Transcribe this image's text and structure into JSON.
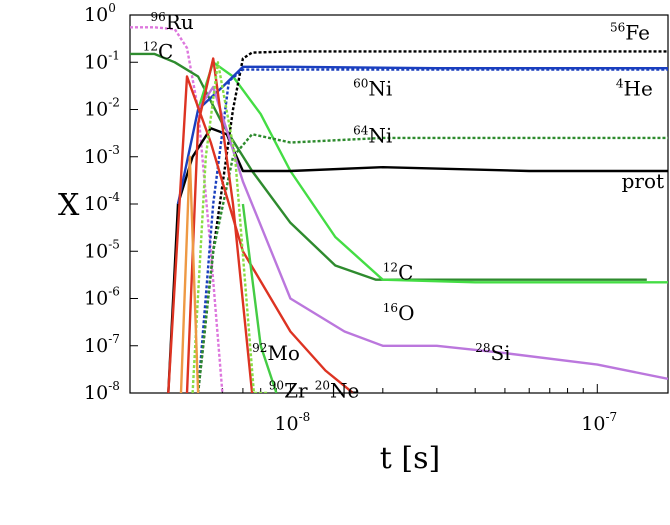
{
  "chart_data": {
    "type": "line",
    "title": "",
    "xlabel": "t [s]",
    "ylabel": "X",
    "x_scale": "log",
    "y_scale": "log",
    "xlim": [
      3e-09,
      1.7e-07
    ],
    "ylim": [
      1e-08,
      1
    ],
    "x_ticks": [
      {
        "base": "10",
        "exp": "-8"
      },
      {
        "base": "10",
        "exp": "-7"
      }
    ],
    "y_ticks": [
      {
        "base": "10",
        "exp": "0"
      },
      {
        "base": "10",
        "exp": "-1"
      },
      {
        "base": "10",
        "exp": "-2"
      },
      {
        "base": "10",
        "exp": "-3"
      },
      {
        "base": "10",
        "exp": "-4"
      },
      {
        "base": "10",
        "exp": "-5"
      },
      {
        "base": "10",
        "exp": "-6"
      },
      {
        "base": "10",
        "exp": "-7"
      },
      {
        "base": "10",
        "exp": "-8"
      }
    ],
    "grid": false,
    "legend": "none",
    "series": [
      {
        "name": "96Ru",
        "color": "#dd77dd",
        "dash": true,
        "x": [
          3e-09,
          3.6e-09,
          4.2e-09,
          4.6e-09,
          5e-09,
          5.5e-09,
          6e-09
        ],
        "y": [
          0.55,
          0.55,
          0.5,
          0.2,
          0.01,
          1e-05,
          1e-08
        ]
      },
      {
        "name": "12C",
        "color": "#2e8b2e",
        "dash": false,
        "x": [
          3e-09,
          3.6e-09,
          4.2e-09,
          5e-09,
          6e-09,
          7.5e-09,
          1e-08,
          1.4e-08,
          1.9e-08,
          3e-08,
          6e-08,
          1.1e-07,
          1.45e-07
        ],
        "y": [
          0.15,
          0.15,
          0.1,
          0.05,
          0.005,
          0.0005,
          4e-05,
          5e-06,
          2.5e-06,
          2.5e-06,
          2.5e-06,
          2.5e-06,
          2.5e-06
        ]
      },
      {
        "name": "16O",
        "color": "#44dd44",
        "dash": false,
        "x": [
          5e-09,
          5.6e-09,
          6.5e-09,
          8e-09,
          1e-08,
          1.4e-08,
          2e-08,
          4e-08,
          8e-08,
          1.7e-07
        ],
        "y": [
          0.01,
          0.1,
          0.05,
          0.008,
          0.0005,
          2e-05,
          2.5e-06,
          2.2e-06,
          2.2e-06,
          2.2e-06
        ]
      },
      {
        "name": "prot",
        "color": "#000000",
        "dash": false,
        "x": [
          4e-09,
          4.3e-09,
          4.8e-09,
          5.5e-09,
          6.2e-09,
          7e-09,
          1e-08,
          2e-08,
          6e-08,
          1.7e-07
        ],
        "y": [
          1e-08,
          0.0001,
          0.001,
          0.004,
          0.003,
          0.0005,
          0.0005,
          0.0006,
          0.0005,
          0.0005
        ]
      },
      {
        "name": "56Fe",
        "color": "#000000",
        "dash": true,
        "x": [
          5e-09,
          5.6e-09,
          6.5e-09,
          7e-09,
          7.5e-09,
          1e-08,
          3e-08,
          1e-07,
          1.7e-07
        ],
        "y": [
          1e-08,
          1e-05,
          0.01,
          0.12,
          0.16,
          0.17,
          0.17,
          0.17,
          0.17
        ]
      },
      {
        "name": "60Ni",
        "color": "#1a3fbf",
        "dash": false,
        "x": [
          4.3e-09,
          5e-09,
          6e-09,
          7e-09,
          1e-08,
          3e-08,
          1e-07,
          1.7e-07
        ],
        "y": [
          0.0001,
          0.01,
          0.03,
          0.08,
          0.08,
          0.075,
          0.075,
          0.075
        ]
      },
      {
        "name": "4He",
        "color": "#1a3fbf",
        "dash": true,
        "x": [
          5e-09,
          5.6e-09,
          6.3e-09,
          7e-09,
          1e-08,
          1e-07,
          1.7e-07
        ],
        "y": [
          1e-08,
          0.0001,
          0.04,
          0.07,
          0.07,
          0.07,
          0.07
        ]
      },
      {
        "name": "64Ni",
        "color": "#2e8b2e",
        "dash": true,
        "x": [
          5e-09,
          5.6e-09,
          6.5e-09,
          7.5e-09,
          1e-08,
          2e-08,
          1e-07,
          1.7e-07
        ],
        "y": [
          1e-08,
          1e-05,
          0.001,
          0.003,
          0.002,
          0.0025,
          0.0025,
          0.0025
        ]
      },
      {
        "name": "28Si",
        "color": "#bb77dd",
        "dash": false,
        "x": [
          5e-09,
          5.6e-09,
          7e-09,
          1e-08,
          1.5e-08,
          2e-08,
          3e-08,
          5e-08,
          1e-07,
          1.7e-07
        ],
        "y": [
          0.01,
          0.03,
          0.0003,
          1e-06,
          2e-07,
          1e-07,
          1e-07,
          7e-08,
          4e-08,
          2e-08
        ]
      },
      {
        "name": "20Ne",
        "color": "#dd3322",
        "dash": false,
        "x": [
          4e-09,
          4.6e-09,
          5.5e-09,
          7e-09,
          1e-08,
          1.3e-08,
          1.6e-08
        ],
        "y": [
          1e-08,
          0.05,
          0.002,
          1e-05,
          2e-07,
          3e-08,
          1e-08
        ]
      },
      {
        "name": "92Mo",
        "color": "#dd3322",
        "dash": false,
        "x": [
          4.6e-09,
          5e-09,
          5.6e-09,
          6.5e-09,
          7.5e-09
        ],
        "y": [
          1e-08,
          0.005,
          0.12,
          0.0001,
          1e-08
        ]
      },
      {
        "name": "90Zr",
        "color": "#88dd44",
        "dash": true,
        "x": [
          4.8e-09,
          5.3e-09,
          5.8e-09,
          6.6e-09,
          7.6e-09,
          8.5e-09
        ],
        "y": [
          1e-08,
          0.001,
          0.1,
          0.001,
          1e-08,
          1e-08
        ]
      },
      {
        "name": "",
        "color": "#44cc44",
        "dash": false,
        "x": [
          7e-09,
          8e-09,
          9e-09
        ],
        "y": [
          0.0001,
          1e-07,
          1e-08
        ]
      },
      {
        "name": "",
        "color": "#ee9944",
        "dash": false,
        "x": [
          4.4e-09,
          4.7e-09,
          5e-09
        ],
        "y": [
          1e-08,
          0.001,
          1e-08
        ]
      }
    ],
    "annotations": [
      {
        "mass": "96",
        "elem": "Ru",
        "x": 3.5e-09,
        "y": 0.5
      },
      {
        "mass": "12",
        "elem": "C",
        "x": 3.3e-09,
        "y": 0.12
      },
      {
        "mass": "56",
        "elem": "Fe",
        "x": 1.1e-07,
        "y": 0.3
      },
      {
        "mass": "60",
        "elem": "Ni",
        "x": 1.6e-08,
        "y": 0.02
      },
      {
        "mass": "4",
        "elem": "He",
        "x": 1.15e-07,
        "y": 0.02
      },
      {
        "mass": "64",
        "elem": "Ni",
        "x": 1.6e-08,
        "y": 0.002
      },
      {
        "mass": "",
        "elem": "prot",
        "x": 1.2e-07,
        "y": 0.00022
      },
      {
        "mass": "12",
        "elem": "C",
        "x": 2e-08,
        "y": 2.5e-06
      },
      {
        "mass": "16",
        "elem": "O",
        "x": 2e-08,
        "y": 3.5e-07
      },
      {
        "mass": "28",
        "elem": "Si",
        "x": 4e-08,
        "y": 5e-08
      },
      {
        "mass": "92",
        "elem": "Mo",
        "x": 7.5e-09,
        "y": 5e-08
      },
      {
        "mass": "90",
        "elem": "Zr",
        "x": 8.5e-09,
        "y": 8e-09
      },
      {
        "mass": "20",
        "elem": "Ne",
        "x": 1.2e-08,
        "y": 8e-09
      }
    ]
  }
}
